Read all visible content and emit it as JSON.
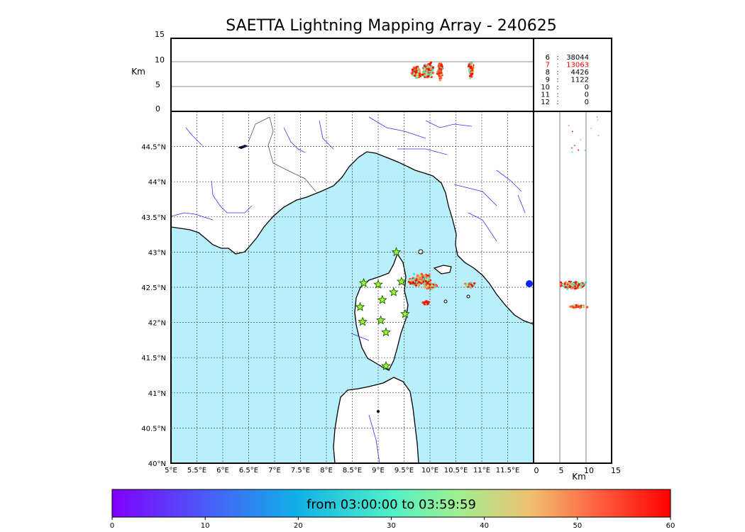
{
  "title": "SAETTA Lightning Mapping Array - 240625",
  "colors": {
    "sea": "#b7effb",
    "land": "#ffffff",
    "coast": "#000000",
    "rivers": "#3333ff",
    "borders": "#555555",
    "grid": "#444444",
    "station_fill": "#99ff33",
    "station_edge": "#225500"
  },
  "map": {
    "lon_range": [
      5.0,
      12.0
    ],
    "lat_range": [
      40.0,
      45.0
    ],
    "lon_ticks": [
      "5°E",
      "5.5°E",
      "6°E",
      "6.5°E",
      "7°E",
      "7.5°E",
      "8°E",
      "8.5°E",
      "9°E",
      "9.5°E",
      "10°E",
      "10.5°E",
      "11°E",
      "11.5°E"
    ],
    "lat_ticks": [
      "40°N",
      "40.5°N",
      "41°N",
      "41.5°N",
      "42°N",
      "42.5°N",
      "43°N",
      "43.5°N",
      "44°N",
      "44.5°N"
    ],
    "stations": [
      {
        "lon": 9.35,
        "lat": 43.0
      },
      {
        "lon": 8.72,
        "lat": 42.56
      },
      {
        "lon": 9.0,
        "lat": 42.54
      },
      {
        "lon": 9.45,
        "lat": 42.58
      },
      {
        "lon": 9.3,
        "lat": 42.43
      },
      {
        "lon": 9.08,
        "lat": 42.32
      },
      {
        "lon": 8.65,
        "lat": 42.22
      },
      {
        "lon": 9.52,
        "lat": 42.12
      },
      {
        "lon": 8.7,
        "lat": 42.01
      },
      {
        "lon": 9.05,
        "lat": 42.03
      },
      {
        "lon": 9.15,
        "lat": 41.86
      },
      {
        "lon": 9.15,
        "lat": 41.38
      }
    ]
  },
  "altitude_panel": {
    "ylabel": "Km",
    "y_ticks": [
      "0",
      "5",
      "10",
      "15"
    ]
  },
  "side_panel": {
    "xlabel": "Km",
    "x_ticks": [
      "0",
      "5",
      "10",
      "15"
    ]
  },
  "counts": [
    {
      "label": "6",
      "sep": ":",
      "value": "38044",
      "color": "#000000"
    },
    {
      "label": "7",
      "sep": ":",
      "value": "13063",
      "color": "#ff0000"
    },
    {
      "label": "8",
      "sep": ":",
      "value": "4426",
      "color": "#000000"
    },
    {
      "label": "9",
      "sep": ":",
      "value": "1122",
      "color": "#000000"
    },
    {
      "label": "10",
      "sep": ":",
      "value": "0",
      "color": "#000000"
    },
    {
      "label": "11",
      "sep": ":",
      "value": "0",
      "color": "#000000"
    },
    {
      "label": "12",
      "sep": ":",
      "value": "0",
      "color": "#000000"
    }
  ],
  "colorbar": {
    "label": "from 03:00:00 to 03:59:59",
    "ticks": [
      "0",
      "10",
      "20",
      "30",
      "40",
      "50",
      "60"
    ],
    "range": [
      0,
      60
    ]
  }
}
